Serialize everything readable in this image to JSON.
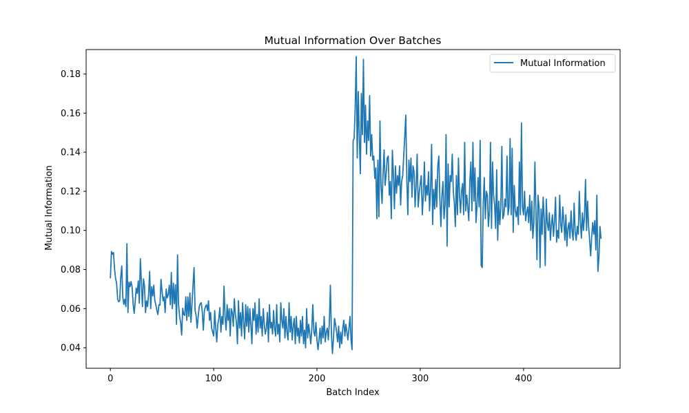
{
  "chart_data": {
    "type": "line",
    "title": "Mutual Information Over Batches",
    "xlabel": "Batch Index",
    "ylabel": "Mutual Information",
    "xlim": [
      -23.5,
      493.5
    ],
    "ylim": [
      0.0295,
      0.1925
    ],
    "xticks": [
      0,
      100,
      200,
      300,
      400
    ],
    "yticks": [
      0.04,
      0.06,
      0.08,
      0.1,
      0.12,
      0.14,
      0.16,
      0.18
    ],
    "ytick_labels": [
      "0.04",
      "0.06",
      "0.08",
      "0.10",
      "0.12",
      "0.14",
      "0.16",
      "0.18"
    ],
    "grid": false,
    "legend": {
      "position": "top-right",
      "entries": [
        "Mutual Information"
      ]
    },
    "series": [
      {
        "name": "Mutual Information",
        "color": "#1f77b4",
        "segments": [
          {
            "x_start": 0,
            "values": [
              0.0758,
              0.0892,
              0.0878,
              0.0887,
              0.0805,
              0.0755,
              0.073,
              0.065,
              0.0635,
              0.064,
              0.076,
              0.0818,
              0.0658,
              0.0622,
              0.0648,
              0.061,
              0.0932,
              0.058,
              0.0736,
              0.0712,
              0.0738,
              0.0712,
              0.0625,
              0.0576,
              0.0635,
              0.0705,
              0.0678,
              0.0742,
              0.0628,
              0.0855,
              0.0738,
              0.061,
              0.0752,
              0.0718,
              0.058,
              0.064,
              0.061,
              0.0675,
              0.079,
              0.06,
              0.0712,
              0.0665,
              0.072,
              0.064,
              0.062,
              0.059,
              0.057,
              0.062,
              0.0618,
              0.075,
              0.069,
              0.064,
              0.066,
              0.058,
              0.07,
              0.0655,
              0.0672,
              0.072,
              0.062,
              0.0785,
              0.06,
              0.073,
              0.0625,
              0.0722,
              0.052,
              0.0875,
              0.062,
              0.056,
              0.053,
              0.0465,
              0.0602,
              0.057,
              0.0565,
              0.066,
              0.054,
              0.066,
              0.056,
              0.068,
              0.053,
              0.0625,
              0.072,
              0.081,
              0.059,
              0.0565,
              0.05,
              0.056,
              0.061,
              0.0625,
              0.063,
              0.058,
              0.049,
              0.059,
              0.061,
              0.062,
              0.059,
              0.064,
              0.054,
              0.058,
              0.05,
              0.048,
              0.046
            ]
          },
          {
            "x_start": 101,
            "values": [
              0.059,
              0.05,
              0.043,
              0.052,
              0.055,
              0.0605,
              0.048,
              0.056,
              0.052,
              0.0715,
              0.056,
              0.049,
              0.062,
              0.054,
              0.06,
              0.046,
              0.06,
              0.058,
              0.051,
              0.065,
              0.057,
              0.053,
              0.042,
              0.064,
              0.05,
              0.058,
              0.046,
              0.063,
              0.053,
              0.0445,
              0.062,
              0.051,
              0.061,
              0.048,
              0.06,
              0.052,
              0.042,
              0.06,
              0.054,
              0.063,
              0.047,
              0.057,
              0.048,
              0.065,
              0.05,
              0.056,
              0.046,
              0.06,
              0.052,
              0.047,
              0.05,
              0.058,
              0.043,
              0.062,
              0.05,
              0.053,
              0.047,
              0.059,
              0.05,
              0.046,
              0.062,
              0.047,
              0.052,
              0.043,
              0.063,
              0.054,
              0.05,
              0.06,
              0.045,
              0.056,
              0.048,
              0.044,
              0.063,
              0.048,
              0.056,
              0.044,
              0.051,
              0.055,
              0.042,
              0.056,
              0.046,
              0.05,
              0.0425,
              0.054,
              0.046,
              0.056,
              0.042,
              0.049,
              0.04,
              0.06,
              0.045,
              0.052,
              0.047,
              0.042,
              0.05,
              0.062,
              0.048,
              0.046,
              0.053,
              0.044
            ]
          },
          {
            "x_start": 201,
            "values": [
              0.039,
              0.044,
              0.05,
              0.042,
              0.051,
              0.045,
              0.056,
              0.043,
              0.048,
              0.05,
              0.044,
              0.053,
              0.072,
              0.047,
              0.037,
              0.045,
              0.055,
              0.052,
              0.048,
              0.043,
              0.051,
              0.04,
              0.048,
              0.042,
              0.05,
              0.054,
              0.046,
              0.052,
              0.048,
              0.044,
              0.05,
              0.056,
              0.044,
              0.039,
              0.146,
              0.147,
              0.162,
              0.1889,
              0.137,
              0.171,
              0.148,
              0.129,
              0.17,
              0.149,
              0.1875,
              0.145,
              0.164,
              0.139,
              0.156,
              0.146,
              0.169,
              0.138,
              0.149,
              0.136,
              0.138,
              0.1265,
              0.132,
              0.106,
              0.136,
              0.107,
              0.156,
              0.123,
              0.1138,
              0.129,
              0.1412,
              0.123,
              0.129,
              0.137,
              0.138,
              0.118,
              0.125,
              0.106,
              0.141,
              0.129,
              0.111,
              0.133,
              0.119,
              0.128,
              0.123,
              0.133,
              0.113,
              0.125,
              0.128,
              0.138,
              0.148,
              0.159,
              0.126,
              0.108,
              0.136,
              0.125,
              0.137,
              0.117,
              0.133,
              0.13,
              0.112,
              0.123,
              0.139,
              0.112,
              0.119,
              0.124
            ]
          },
          {
            "x_start": 301,
            "values": [
              0.128,
              0.108,
              0.118,
              0.135,
              0.115,
              0.123,
              0.118,
              0.13,
              0.11,
              0.121,
              0.144,
              0.103,
              0.121,
              0.111,
              0.126,
              0.112,
              0.133,
              0.138,
              0.116,
              0.102,
              0.118,
              0.125,
              0.106,
              0.113,
              0.149,
              0.092,
              0.134,
              0.112,
              0.128,
              0.125,
              0.139,
              0.12,
              0.114,
              0.102,
              0.128,
              0.108,
              0.137,
              0.118,
              0.109,
              0.12,
              0.124,
              0.108,
              0.145,
              0.11,
              0.118,
              0.112,
              0.105,
              0.125,
              0.135,
              0.11,
              0.145,
              0.115,
              0.132,
              0.104,
              0.113,
              0.127,
              0.112,
              0.146,
              0.082,
              0.081,
              0.114,
              0.127,
              0.106,
              0.12,
              0.118,
              0.102,
              0.11,
              0.145,
              0.101,
              0.135,
              0.118,
              0.113,
              0.101,
              0.131,
              0.095,
              0.115,
              0.103,
              0.112,
              0.143,
              0.106,
              0.108,
              0.116,
              0.112,
              0.138,
              0.108,
              0.112,
              0.147,
              0.108,
              0.142,
              0.099,
              0.123,
              0.11,
              0.107,
              0.112,
              0.103,
              0.135,
              0.108,
              0.155,
              0.112,
              0.108
            ]
          },
          {
            "x_start": 401,
            "values": [
              0.12,
              0.105,
              0.109,
              0.112,
              0.104,
              0.118,
              0.1,
              0.115,
              0.096,
              0.104,
              0.135,
              0.11,
              0.085,
              0.118,
              0.112,
              0.081,
              0.111,
              0.098,
              0.117,
              0.106,
              0.082,
              0.116,
              0.104,
              0.1,
              0.109,
              0.095,
              0.103,
              0.108,
              0.097,
              0.105,
              0.117,
              0.094,
              0.1,
              0.096,
              0.118,
              0.103,
              0.099,
              0.112,
              0.105,
              0.095,
              0.108,
              0.092,
              0.101,
              0.104,
              0.096,
              0.11,
              0.1,
              0.095,
              0.114,
              0.099,
              0.095,
              0.102,
              0.098,
              0.12,
              0.105,
              0.096,
              0.109,
              0.1,
              0.107,
              0.126,
              0.1,
              0.115,
              0.102,
              0.095,
              0.087,
              0.097,
              0.104,
              0.098,
              0.105,
              0.09,
              0.118,
              0.079,
              0.086,
              0.102,
              0.096
            ]
          }
        ]
      }
    ]
  }
}
